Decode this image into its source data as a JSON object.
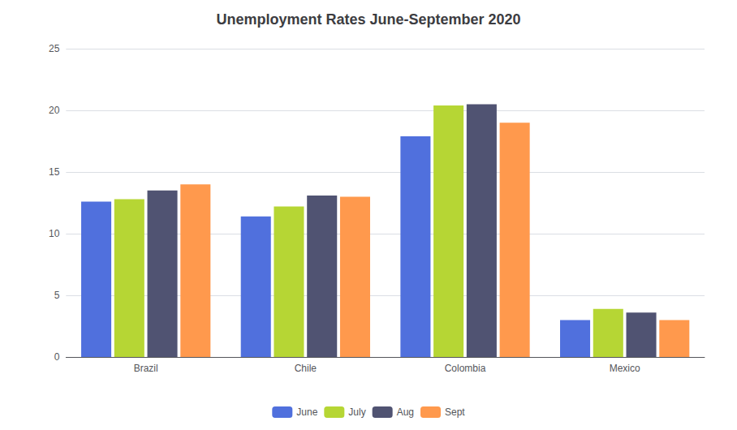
{
  "chart_data": {
    "type": "bar",
    "title": "Unemployment Rates June-September 2020",
    "categories": [
      "Brazil",
      "Chile",
      "Colombia",
      "Mexico"
    ],
    "series": [
      {
        "name": "June",
        "values": [
          12.6,
          11.4,
          17.9,
          3.0
        ]
      },
      {
        "name": "July",
        "values": [
          12.8,
          12.2,
          20.4,
          3.9
        ]
      },
      {
        "name": "Aug",
        "values": [
          13.5,
          13.1,
          20.5,
          3.6
        ]
      },
      {
        "name": "Sept",
        "values": [
          14.0,
          13.0,
          19.0,
          3.0
        ]
      }
    ],
    "ylim": [
      0,
      25
    ],
    "yticks": [
      0,
      5,
      10,
      15,
      20,
      25
    ],
    "grid": true,
    "legend": "bottom"
  }
}
